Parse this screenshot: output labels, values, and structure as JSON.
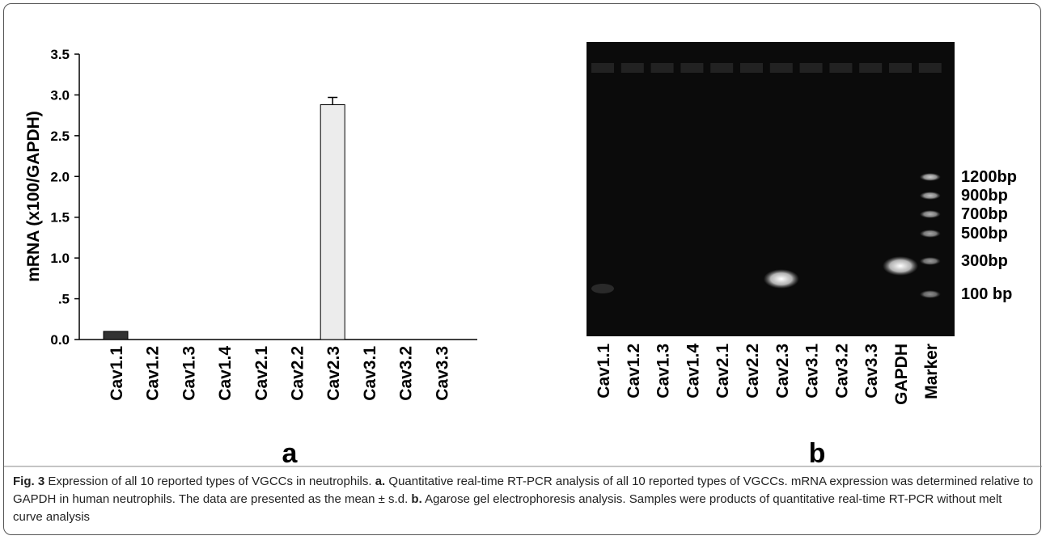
{
  "chart_data": {
    "type": "bar",
    "y_label": "mRNA (x100/GAPDH)",
    "panel_label": "a",
    "categories": [
      "Cav1.1",
      "Cav1.2",
      "Cav1.3",
      "Cav1.4",
      "Cav2.1",
      "Cav2.2",
      "Cav2.3",
      "Cav3.1",
      "Cav3.2",
      "Cav3.3"
    ],
    "values": [
      0.1,
      0,
      0,
      0,
      0,
      0,
      2.88,
      0,
      0,
      0
    ],
    "errors": [
      null,
      null,
      null,
      null,
      null,
      null,
      0.09,
      null,
      null,
      null
    ],
    "colors": [
      "#333333",
      "#ffffff",
      "#ffffff",
      "#ffffff",
      "#ffffff",
      "#ffffff",
      "#ececec",
      "#ffffff",
      "#ffffff",
      "#ffffff"
    ],
    "ylim": [
      0,
      3.5
    ],
    "yticks": [
      {
        "value": 0,
        "label": "0.0"
      },
      {
        "value": 0.5,
        "label": ".5"
      },
      {
        "value": 1,
        "label": "1.0"
      },
      1.5,
      {
        "value": 2,
        "label": "2.0"
      },
      2.5,
      {
        "value": 3,
        "label": "3.0"
      },
      3.5
    ]
  },
  "gel": {
    "panel_label": "b",
    "lanes": [
      "Cav1.1",
      "Cav1.2",
      "Cav1.3",
      "Cav1.4",
      "Cav2.1",
      "Cav2.2",
      "Cav2.3",
      "Cav3.1",
      "Cav3.2",
      "Cav3.3",
      "GAPDH",
      "Marker"
    ],
    "markers": [
      "1200bp",
      "900bp",
      "700bp",
      "500bp",
      "300bp",
      "100 bp"
    ]
  },
  "caption": {
    "segments": [
      {
        "text": "Fig. 3",
        "bold": true
      },
      {
        "text": " Expression of all 10 reported types of VGCCs in neutrophils. ",
        "bold": false
      },
      {
        "text": "a.",
        "bold": true
      },
      {
        "text": " Quantitative real-time RT-PCR analysis of all 10 reported types of VGCCs. mRNA expression was determined relative to GAPDH in human neutrophils. The data are presented as the mean ± s.d. ",
        "bold": false
      },
      {
        "text": "b.",
        "bold": true
      },
      {
        "text": " Agarose gel electrophoresis analysis. Samples were products of quantitative real-time RT-PCR without melt curve analysis",
        "bold": false
      }
    ]
  }
}
